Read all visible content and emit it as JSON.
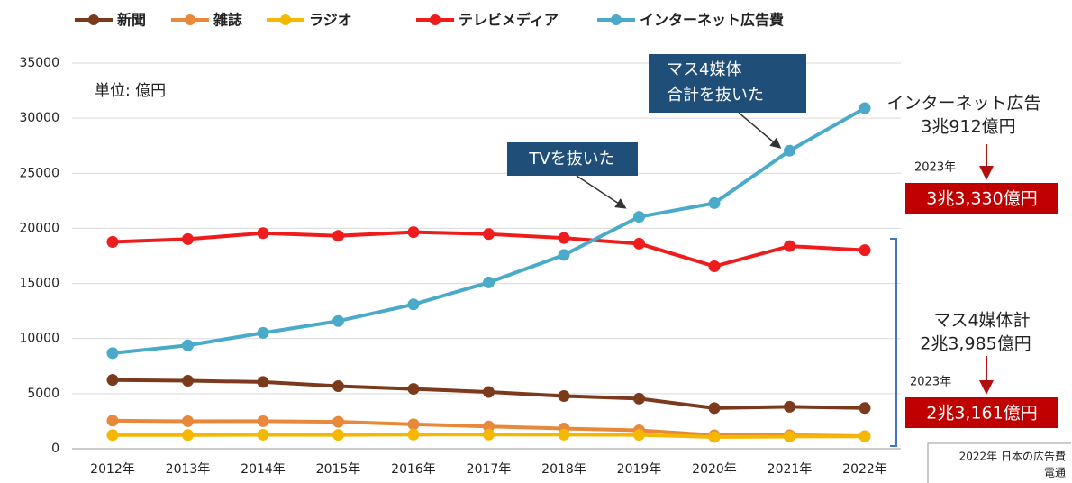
{
  "chart_data": {
    "type": "line",
    "categories": [
      "2012年",
      "2013年",
      "2014年",
      "2015年",
      "2016年",
      "2017年",
      "2018年",
      "2019年",
      "2020年",
      "2021年",
      "2022年"
    ],
    "series": [
      {
        "name": "新聞",
        "color": "#7b3a1c",
        "values": [
          6242,
          6170,
          6057,
          5679,
          5431,
          5147,
          4784,
          4547,
          3688,
          3815,
          3697
        ]
      },
      {
        "name": "雑誌",
        "color": "#e8883a",
        "values": [
          2551,
          2499,
          2500,
          2443,
          2223,
          2023,
          1841,
          1675,
          1223,
          1224,
          1140
        ]
      },
      {
        "name": "ラジオ",
        "color": "#f5b800",
        "values": [
          1246,
          1243,
          1272,
          1254,
          1285,
          1290,
          1278,
          1260,
          1066,
          1106,
          1129
        ]
      },
      {
        "name": "テレビメディア",
        "color": "#ee1c1c",
        "values": [
          18770,
          19023,
          19564,
          19323,
          19657,
          19478,
          19123,
          18612,
          16559,
          18393,
          18019
        ]
      },
      {
        "name": "インターネット広告費",
        "color": "#4aaac9",
        "values": [
          8680,
          9381,
          10519,
          11594,
          13100,
          15094,
          17589,
          21048,
          22290,
          27052,
          30912
        ]
      }
    ],
    "ylim": [
      0,
      35000
    ],
    "yticks": [
      0,
      5000,
      10000,
      15000,
      20000,
      25000,
      30000,
      35000
    ],
    "grid": true,
    "legend": "top",
    "annotations": {
      "unit": "単位: 億円",
      "callout_mass": [
        "マス4媒体",
        "合計を抜いた"
      ],
      "callout_tv": "TVを抜いた",
      "net_label": "インターネット広告",
      "net_value": "3兆912億円",
      "net_year": "2023年",
      "net_2023": "3兆3,330億円",
      "mass_label": "マス4媒体計",
      "mass_value": "2兆3,985億円",
      "mass_year": "2023年",
      "mass_2023": "2兆3,161億円",
      "source": [
        "2022年 日本の広告費",
        "電通"
      ]
    }
  }
}
